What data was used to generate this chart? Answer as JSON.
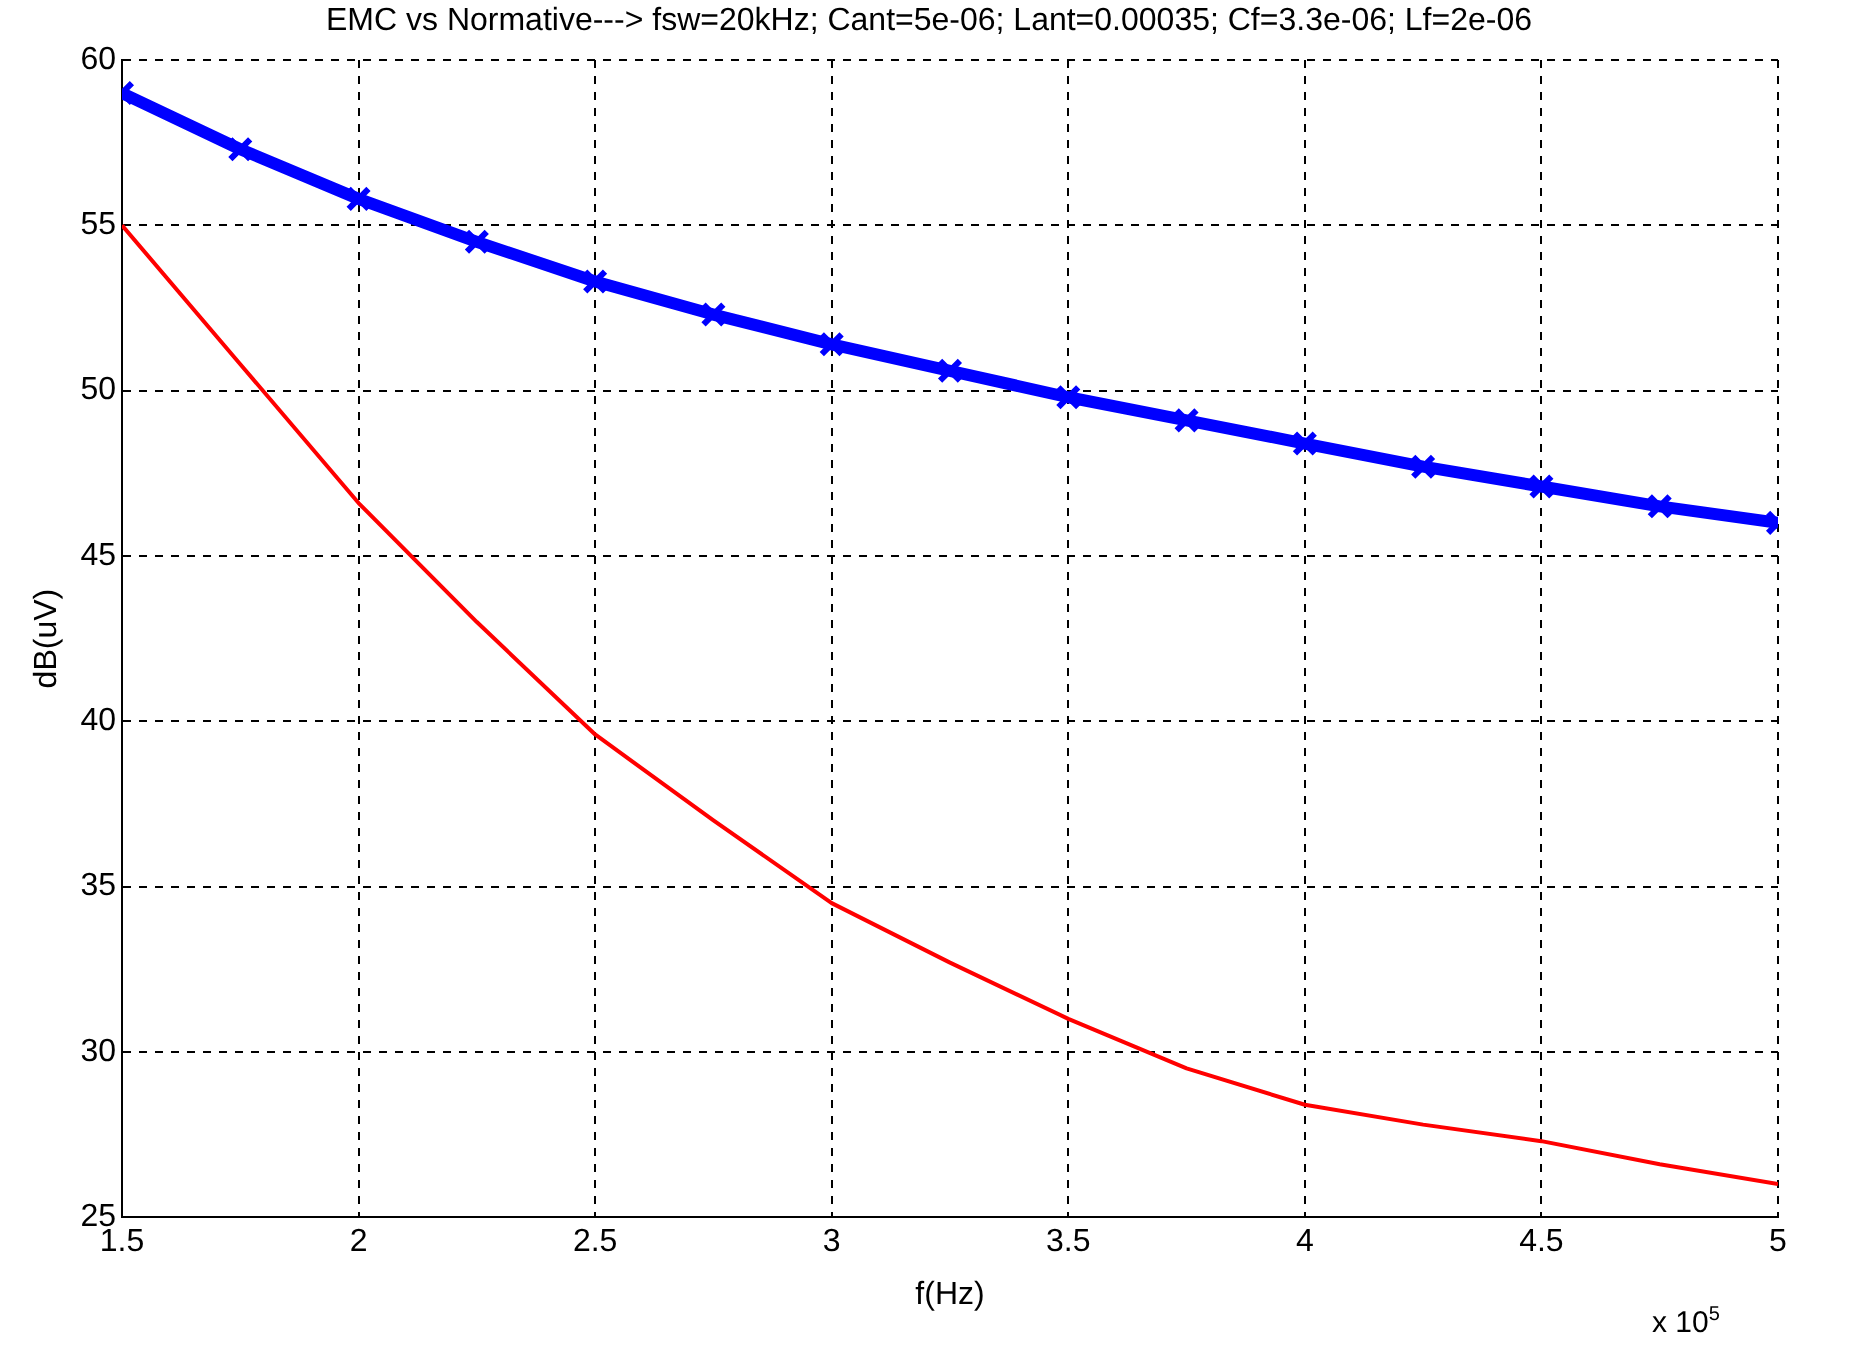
{
  "chart_data": {
    "type": "line",
    "title": "EMC vs Normative---> fsw=20kHz; Cant=5e-06; Lant=0.00035; Cf=3.3e-06; Lf=2e-06",
    "xlabel": "f(Hz)",
    "ylabel": "dB(uV)",
    "annotations": [
      "x 10$^{5}$"
    ],
    "x": [
      1.5,
      1.75,
      2,
      2.25,
      2.5,
      2.75,
      3,
      3.25,
      3.5,
      3.75,
      4,
      4.25,
      4.5,
      4.75,
      5
    ],
    "series": [
      {
        "color": "#0000ff",
        "marker": "cross",
        "values": [
          59,
          57.3,
          55.8,
          54.5,
          53.3,
          52.3,
          51.4,
          50.6,
          49.8,
          49.1,
          48.4,
          47.7,
          47.1,
          46.5,
          46
        ]
      },
      {
        "color": "#ff0000",
        "marker": "none",
        "values": [
          55,
          50.8,
          46.6,
          43,
          39.6,
          37,
          34.5,
          32.7,
          31,
          29.5,
          28.4,
          27.8,
          27.3,
          26.6,
          26
        ]
      }
    ],
    "xlim": [
      1.5,
      5
    ],
    "xticks": [
      1.5,
      2,
      2.5,
      3,
      3.5,
      4,
      4.5,
      5
    ],
    "ylim": [
      25,
      60
    ],
    "yticks": [
      25,
      30,
      35,
      40,
      45,
      50,
      55,
      60
    ],
    "grid": true,
    "line_style": "solid",
    "legend": false
  }
}
